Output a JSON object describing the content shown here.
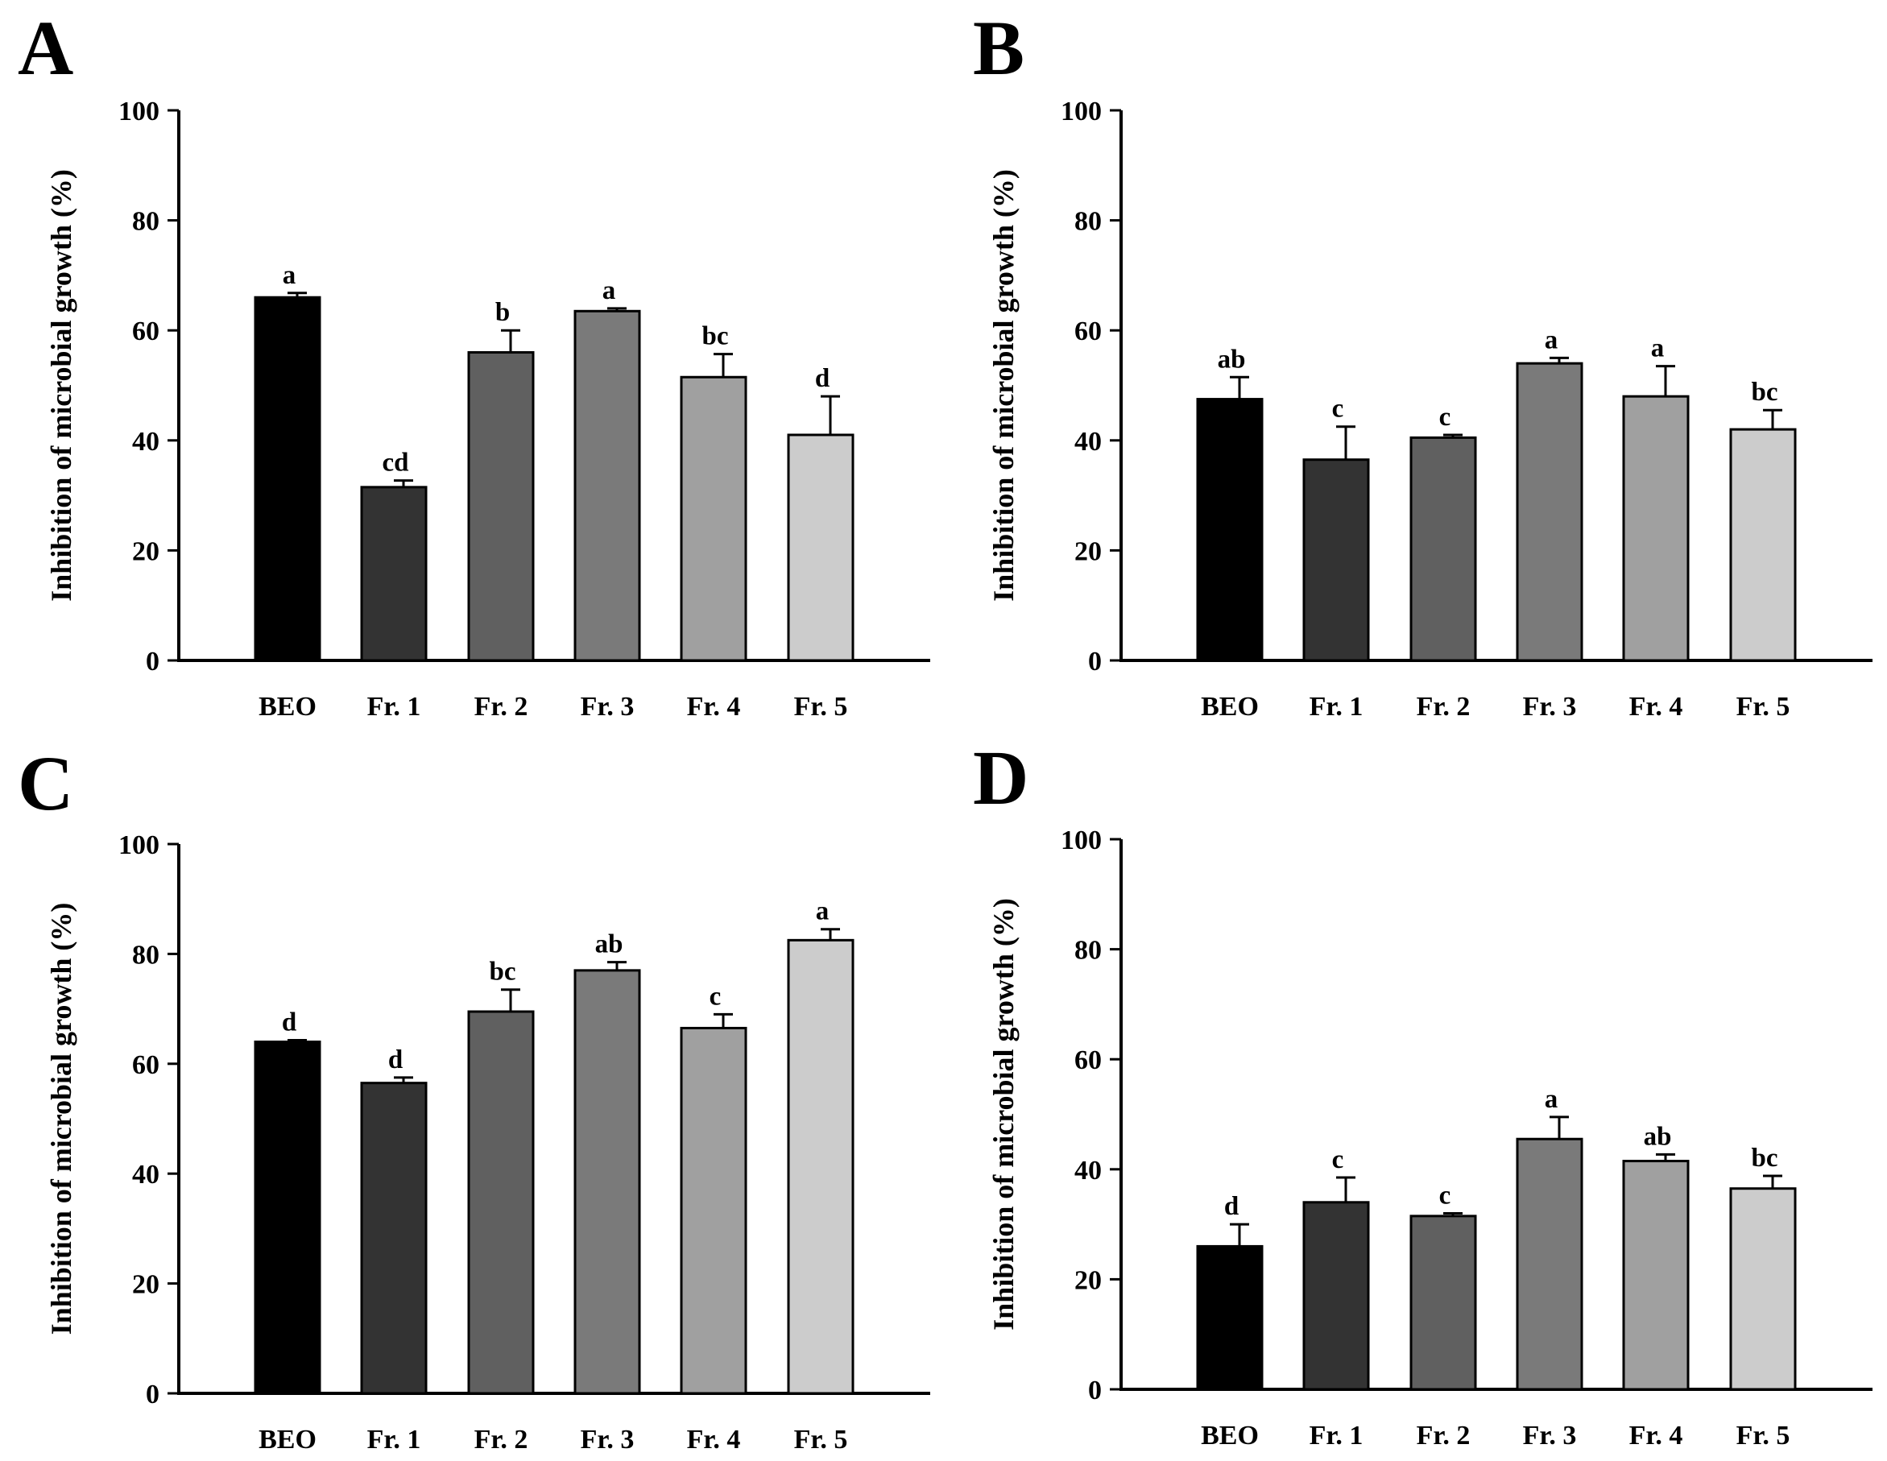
{
  "chart_data": [
    {
      "type": "bar",
      "panel_label": "A",
      "ylabel": "Inhibition of microbial growth (%)",
      "ylim": [
        0,
        100
      ],
      "yticks": [
        0,
        20,
        40,
        60,
        80,
        100
      ],
      "categories": [
        "BEO",
        "Fr. 1",
        "Fr. 2",
        "Fr. 3",
        "Fr. 4",
        "Fr. 5"
      ],
      "values": [
        66,
        31.5,
        56,
        63.5,
        51.5,
        41
      ],
      "errors": [
        0.8,
        1.2,
        4,
        0.5,
        4.2,
        7
      ],
      "significance": [
        "a",
        "cd",
        "b",
        "a",
        "bc",
        "d"
      ],
      "colors": [
        "#000000",
        "#333333",
        "#606060",
        "#7a7a7a",
        "#a0a0a0",
        "#cccccc"
      ]
    },
    {
      "type": "bar",
      "panel_label": "B",
      "ylabel": "Inhibition of microbial growth (%)",
      "ylim": [
        0,
        100
      ],
      "yticks": [
        0,
        20,
        40,
        60,
        80,
        100
      ],
      "categories": [
        "BEO",
        "Fr. 1",
        "Fr. 2",
        "Fr. 3",
        "Fr. 4",
        "Fr. 5"
      ],
      "values": [
        47.5,
        36.5,
        40.5,
        54,
        48,
        42
      ],
      "errors": [
        4,
        6,
        0.5,
        1,
        5.5,
        3.5
      ],
      "significance": [
        "ab",
        "c",
        "c",
        "a",
        "a",
        "bc"
      ],
      "colors": [
        "#000000",
        "#333333",
        "#606060",
        "#7a7a7a",
        "#a0a0a0",
        "#cccccc"
      ]
    },
    {
      "type": "bar",
      "panel_label": "C",
      "ylabel": "Inhibition of microbial growth (%)",
      "ylim": [
        0,
        100
      ],
      "yticks": [
        0,
        20,
        40,
        60,
        80,
        100
      ],
      "categories": [
        "BEO",
        "Fr. 1",
        "Fr. 2",
        "Fr. 3",
        "Fr. 4",
        "Fr. 5"
      ],
      "values": [
        64,
        56.5,
        69.5,
        77,
        66.5,
        82.5
      ],
      "errors": [
        0.3,
        1,
        4,
        1.5,
        2.5,
        2
      ],
      "significance": [
        "d",
        "d",
        "bc",
        "ab",
        "c",
        "a"
      ],
      "colors": [
        "#000000",
        "#333333",
        "#606060",
        "#7a7a7a",
        "#a0a0a0",
        "#cccccc"
      ]
    },
    {
      "type": "bar",
      "panel_label": "D",
      "ylabel": "Inhibition of microbial growth (%)",
      "ylim": [
        0,
        100
      ],
      "yticks": [
        0,
        20,
        40,
        60,
        80,
        100
      ],
      "categories": [
        "BEO",
        "Fr. 1",
        "Fr. 2",
        "Fr. 3",
        "Fr. 4",
        "Fr. 5"
      ],
      "values": [
        26,
        34,
        31.5,
        45.5,
        41.5,
        36.5
      ],
      "errors": [
        4,
        4.5,
        0.5,
        4,
        1.2,
        2.3
      ],
      "significance": [
        "d",
        "c",
        "c",
        "a",
        "ab",
        "bc"
      ],
      "colors": [
        "#000000",
        "#333333",
        "#606060",
        "#7a7a7a",
        "#a0a0a0",
        "#cccccc"
      ]
    }
  ]
}
